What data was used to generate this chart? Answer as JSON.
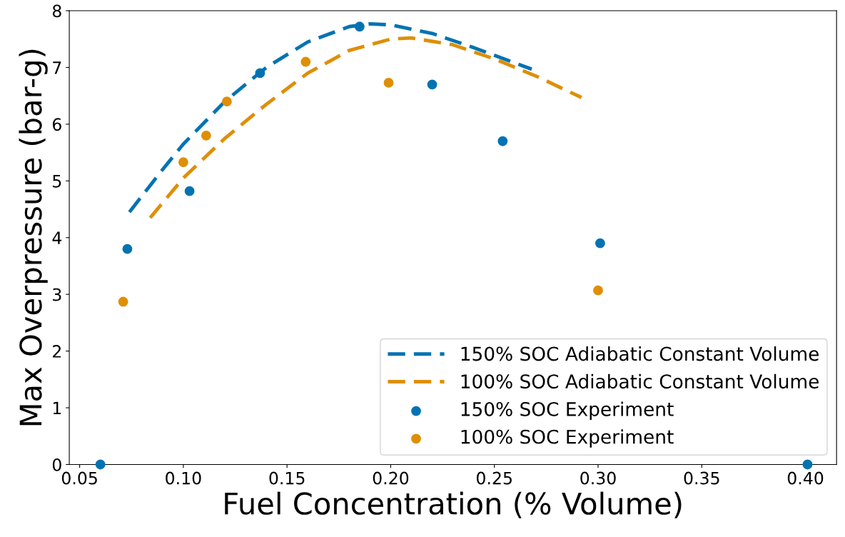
{
  "chart_data": {
    "type": "line",
    "xlabel": "Fuel Concentration (% Volume)",
    "ylabel": "Max Overpressure (bar-g)",
    "xlim": [
      0.045,
      0.415
    ],
    "xticks": [
      {
        "value": 0.05,
        "label": "0.05"
      },
      {
        "value": 0.1,
        "label": "0.10"
      },
      {
        "value": 0.15,
        "label": "0.15"
      },
      {
        "value": 0.2,
        "label": "0.20"
      },
      {
        "value": 0.25,
        "label": "0.25"
      },
      {
        "value": 0.3,
        "label": "0.30"
      },
      {
        "value": 0.35,
        "label": "0.35"
      },
      {
        "value": 0.4,
        "label": "0.40"
      }
    ],
    "ylim": [
      0,
      8
    ],
    "yticks": [
      0,
      1,
      2,
      3,
      4,
      5,
      6,
      7,
      8
    ],
    "grid": false,
    "legend": "bottom right",
    "series": [
      {
        "name": "150% SOC Adiabatic Constant Volume",
        "line_style": "dashed",
        "marker": "none",
        "color": "#0173b2",
        "x": [
          0.074,
          0.09,
          0.1,
          0.12,
          0.14,
          0.16,
          0.18,
          0.19,
          0.2,
          0.22,
          0.24,
          0.268
        ],
        "values": [
          4.45,
          5.2,
          5.65,
          6.4,
          7.0,
          7.45,
          7.72,
          7.77,
          7.75,
          7.6,
          7.35,
          6.97
        ]
      },
      {
        "name": "100% SOC Adiabatic Constant Volume",
        "line_style": "dashed",
        "marker": "none",
        "color": "#de8f05",
        "x": [
          0.084,
          0.1,
          0.12,
          0.14,
          0.16,
          0.18,
          0.2,
          0.21,
          0.23,
          0.25,
          0.27,
          0.292
        ],
        "values": [
          4.35,
          5.05,
          5.75,
          6.35,
          6.9,
          7.3,
          7.5,
          7.52,
          7.4,
          7.15,
          6.85,
          6.47
        ]
      },
      {
        "name": "150% SOC Experiment",
        "type": "scatter",
        "marker": "circle",
        "color": "#0173b2",
        "x": [
          0.06,
          0.073,
          0.103,
          0.137,
          0.185,
          0.22,
          0.254,
          0.301,
          0.401
        ],
        "values": [
          0,
          3.8,
          4.82,
          6.9,
          7.72,
          6.7,
          5.7,
          3.9,
          0
        ]
      },
      {
        "name": "100% SOC Experiment",
        "type": "scatter",
        "marker": "circle",
        "color": "#de8f05",
        "x": [
          0.071,
          0.1,
          0.111,
          0.121,
          0.159,
          0.199,
          0.3
        ],
        "values": [
          2.87,
          5.33,
          5.8,
          6.4,
          7.1,
          6.73,
          3.07
        ]
      }
    ]
  }
}
